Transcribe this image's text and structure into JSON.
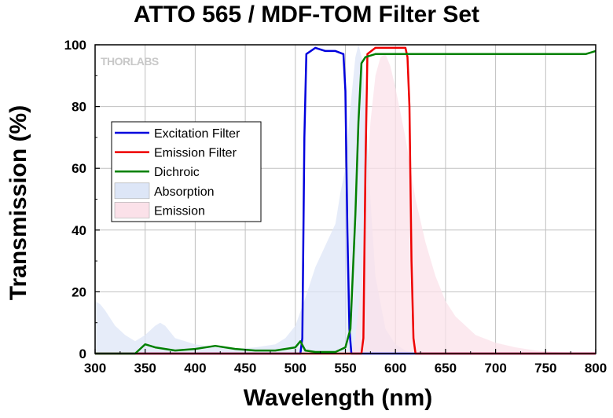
{
  "chart_data": {
    "type": "line",
    "title": "ATTO 565 / MDF-TOM Filter Set",
    "xlabel": "Wavelength (nm)",
    "ylabel": "Transmission (%)",
    "xlim": [
      300,
      800
    ],
    "ylim": [
      0,
      100
    ],
    "xticks": [
      300,
      350,
      400,
      450,
      500,
      550,
      600,
      650,
      700,
      750,
      800
    ],
    "yticks": [
      0,
      20,
      40,
      60,
      80,
      100
    ],
    "grid": true,
    "legend_position": "left-middle",
    "watermark": "THORLABS",
    "series": [
      {
        "name": "Excitation Filter",
        "color": "#0000dd",
        "style": "line",
        "x": [
          300,
          505,
          507,
          509,
          511,
          520,
          530,
          540,
          548,
          550,
          552,
          554,
          556,
          560,
          800
        ],
        "y": [
          0,
          0,
          5,
          70,
          97,
          99,
          98,
          98,
          97,
          85,
          40,
          8,
          0,
          0,
          0
        ]
      },
      {
        "name": "Emission Filter",
        "color": "#ee0000",
        "style": "line",
        "x": [
          300,
          566,
          568,
          570,
          572,
          580,
          590,
          600,
          610,
          612,
          614,
          616,
          618,
          620,
          800
        ],
        "y": [
          0,
          0,
          5,
          60,
          97,
          99,
          99,
          99,
          99,
          96,
          80,
          30,
          5,
          0,
          0
        ]
      },
      {
        "name": "Dichroic",
        "color": "#008000",
        "style": "line",
        "x": [
          300,
          340,
          345,
          350,
          360,
          380,
          400,
          420,
          440,
          460,
          480,
          500,
          505,
          510,
          520,
          540,
          550,
          555,
          560,
          563,
          566,
          570,
          580,
          600,
          650,
          700,
          750,
          790,
          800
        ],
        "y": [
          0,
          0,
          1.5,
          3,
          2,
          1,
          1.5,
          2.5,
          1.5,
          1,
          1,
          2,
          4,
          1,
          0.5,
          0.5,
          2,
          8,
          45,
          75,
          94,
          96,
          97,
          97,
          97,
          97,
          97,
          97,
          98
        ]
      },
      {
        "name": "Absorption",
        "color": "#dde6f7",
        "style": "area",
        "x": [
          300,
          305,
          310,
          320,
          330,
          340,
          350,
          360,
          365,
          370,
          380,
          400,
          420,
          440,
          460,
          480,
          490,
          500,
          510,
          520,
          530,
          540,
          545,
          550,
          555,
          560,
          563,
          567,
          570,
          575,
          580,
          590,
          600,
          610,
          620,
          800
        ],
        "y": [
          17,
          16,
          14,
          9,
          6,
          4,
          6,
          9,
          10,
          9,
          5,
          3,
          2,
          1.5,
          2,
          3,
          5,
          9,
          18,
          28,
          35,
          42,
          52,
          60,
          80,
          96,
          100,
          95,
          80,
          50,
          25,
          8,
          3,
          1,
          0,
          0
        ]
      },
      {
        "name": "Emission",
        "color": "#fbe1e9",
        "style": "area",
        "x": [
          300,
          555,
          560,
          565,
          570,
          575,
          580,
          585,
          590,
          595,
          600,
          610,
          620,
          630,
          640,
          650,
          660,
          680,
          700,
          720,
          740,
          760,
          780,
          800
        ],
        "y": [
          0,
          0,
          5,
          20,
          50,
          75,
          90,
          96,
          97,
          93,
          86,
          70,
          50,
          36,
          25,
          17,
          12,
          6,
          3.5,
          2,
          1,
          0.5,
          0.2,
          0
        ]
      }
    ]
  }
}
